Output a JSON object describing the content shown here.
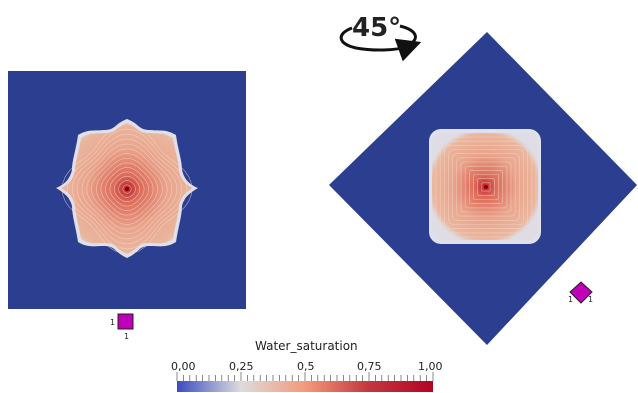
{
  "rotation": {
    "label": "45°"
  },
  "legend": {
    "title": "Water_saturation",
    "ticks": [
      "0,00",
      "0,25",
      "0,5",
      "0,75",
      "1,00"
    ],
    "colors": [
      "#3b4cc0",
      "#dddcdc",
      "#f49a7b",
      "#c2373d",
      "#b40426"
    ]
  },
  "left_panel": {
    "cell_labels": {
      "x": "1",
      "y": "1"
    },
    "background_color": "#2c3e8f",
    "front_color": "#e8a38c",
    "source_color": "#8b0000"
  },
  "right_panel": {
    "cell_labels": {
      "x": "1",
      "y": "1"
    },
    "background_color": "#2c3e8f",
    "front_color": "#e8a38c",
    "source_color": "#8b0000"
  },
  "cell_icon_color": "#c000b8"
}
